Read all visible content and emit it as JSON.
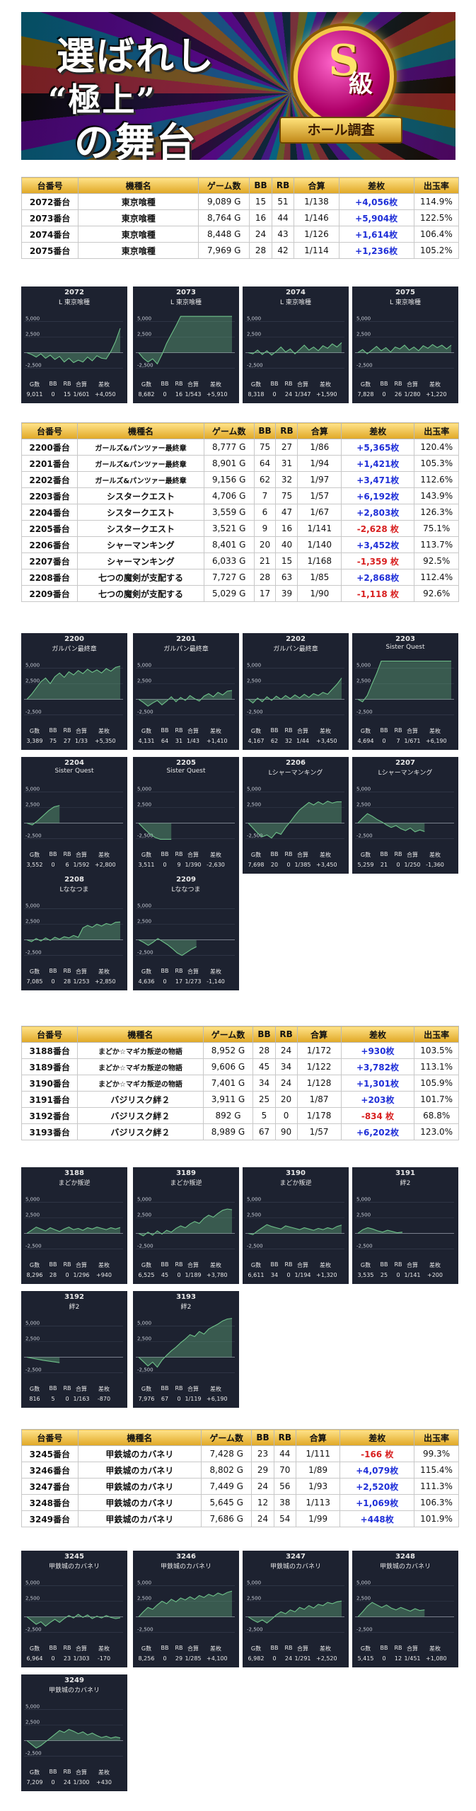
{
  "banner": {
    "line1": "選ばれし",
    "line2": "“極上”",
    "line3": "の舞台",
    "badge_letter": "S",
    "badge_suffix": "級",
    "badge_ribbon": "ホール調査"
  },
  "columns": [
    "台番号",
    "機種名",
    "ゲーム数",
    "BB",
    "RB",
    "合算",
    "差枚",
    "出玉率"
  ],
  "colors": {
    "plus": "#1f2fd8",
    "minus": "#d81f1f",
    "header": "#f0c040",
    "graph_bg": "#1d2230",
    "graph_line": "#6fc28a"
  },
  "graph_labels": {
    "y_top": "5,000",
    "y_mid": "2,500",
    "y_bot": "-2,500",
    "stat_labels": [
      "G数",
      "BB",
      "RB",
      "合算",
      "差枚"
    ]
  },
  "groups": [
    {
      "rows": [
        [
          "2072番台",
          "東京喰種",
          "9,089 G",
          "15",
          "51",
          "1/138",
          "+4,056枚",
          "114.9%"
        ],
        [
          "2073番台",
          "東京喰種",
          "8,764 G",
          "16",
          "44",
          "1/146",
          "+5,904枚",
          "122.5%"
        ],
        [
          "2074番台",
          "東京喰種",
          "8,448 G",
          "24",
          "43",
          "1/126",
          "+1,614枚",
          "106.4%"
        ],
        [
          "2075番台",
          "東京喰種",
          "7,969 G",
          "28",
          "42",
          "1/114",
          "+1,236枚",
          "105.2%"
        ]
      ],
      "graphs": [
        {
          "no": "2072",
          "machine": "L 東京喰種",
          "stats": [
            "9,011",
            "0",
            "15",
            "1/601",
            "+4,050"
          ],
          "series": [
            0,
            -300,
            -700,
            -200,
            -900,
            -400,
            -1100,
            -600,
            -1500,
            -900,
            -1600,
            -1200,
            -1500,
            -700,
            -1300,
            -500,
            -900,
            -1000,
            200,
            1800,
            3900
          ]
        },
        {
          "no": "2073",
          "machine": "L 東京喰種",
          "stats": [
            "8,682",
            "0",
            "16",
            "1/543",
            "+5,910"
          ],
          "series": [
            0,
            -900,
            -1500,
            -1000,
            -1800,
            -300,
            1500,
            2900,
            4300,
            5800,
            5800,
            5800,
            5800,
            5800,
            5800,
            5800,
            5800,
            5800,
            5800,
            5800,
            5800
          ]
        },
        {
          "no": "2074",
          "machine": "L 東京喰種",
          "stats": [
            "8,318",
            "0",
            "24",
            "1/347",
            "+1,590"
          ],
          "series": [
            0,
            -200,
            400,
            -300,
            300,
            -400,
            200,
            900,
            100,
            600,
            -200,
            500,
            1200,
            400,
            900,
            300,
            1100,
            700,
            1400,
            900,
            1600
          ]
        },
        {
          "no": "2075",
          "machine": "L 東京喰種",
          "stats": [
            "7,828",
            "0",
            "26",
            "1/280",
            "+1,220"
          ],
          "series": [
            0,
            500,
            -200,
            400,
            1000,
            300,
            800,
            100,
            900,
            600,
            1200,
            400,
            900,
            300,
            1100,
            700,
            1300,
            800,
            1200,
            600,
            1200
          ]
        }
      ]
    },
    {
      "rows": [
        [
          "2200番台",
          "ガールズ&パンツァー最終章",
          "8,777 G",
          "75",
          "27",
          "1/86",
          "+5,365枚",
          "120.4%"
        ],
        [
          "2201番台",
          "ガールズ&パンツァー最終章",
          "8,901 G",
          "64",
          "31",
          "1/94",
          "+1,421枚",
          "105.3%"
        ],
        [
          "2202番台",
          "ガールズ&パンツァー最終章",
          "9,156 G",
          "62",
          "32",
          "1/97",
          "+3,471枚",
          "112.6%"
        ],
        [
          "2203番台",
          "シスタークエスト",
          "4,706 G",
          "7",
          "75",
          "1/57",
          "+6,192枚",
          "143.9%"
        ],
        [
          "2204番台",
          "シスタークエスト",
          "3,559 G",
          "6",
          "47",
          "1/67",
          "+2,803枚",
          "126.3%"
        ],
        [
          "2205番台",
          "シスタークエスト",
          "3,521 G",
          "9",
          "16",
          "1/141",
          "-2,628 枚",
          "75.1%"
        ],
        [
          "2206番台",
          "シャーマンキング",
          "8,401 G",
          "20",
          "40",
          "1/140",
          "+3,452枚",
          "113.7%"
        ],
        [
          "2207番台",
          "シャーマンキング",
          "6,033 G",
          "21",
          "15",
          "1/168",
          "-1,359 枚",
          "92.5%"
        ],
        [
          "2208番台",
          "七つの魔剣が支配する",
          "7,727 G",
          "28",
          "63",
          "1/85",
          "+2,868枚",
          "112.4%"
        ],
        [
          "2209番台",
          "七つの魔剣が支配する",
          "5,029 G",
          "17",
          "39",
          "1/90",
          "-1,118 枚",
          "92.6%"
        ]
      ],
      "graphs": [
        {
          "no": "2200",
          "machine": "ガルパン最終章",
          "stats": [
            "3,389",
            "75",
            "27",
            "1/33",
            "+5,350"
          ],
          "series": [
            0,
            800,
            1800,
            2800,
            3400,
            2500,
            3600,
            4200,
            3500,
            4400,
            3900,
            4600,
            4100,
            4800,
            4300,
            4700,
            4200,
            4900,
            4500,
            5100,
            5300
          ]
        },
        {
          "no": "2201",
          "machine": "ガルパン最終章",
          "stats": [
            "4,131",
            "64",
            "31",
            "1/43",
            "+1,410"
          ],
          "series": [
            0,
            -500,
            -1100,
            -600,
            -200,
            -900,
            -300,
            400,
            -400,
            300,
            -200,
            600,
            100,
            -300,
            500,
            900,
            400,
            1100,
            700,
            1300,
            1400
          ]
        },
        {
          "no": "2202",
          "machine": "ガルパン最終章",
          "stats": [
            "4,167",
            "62",
            "32",
            "1/44",
            "+3,450"
          ],
          "series": [
            0,
            -600,
            200,
            -400,
            400,
            -200,
            500,
            0,
            600,
            100,
            700,
            200,
            800,
            300,
            900,
            600,
            1100,
            800,
            1600,
            2400,
            3400
          ]
        },
        {
          "no": "2203",
          "machine": "Sister Quest",
          "stats": [
            "4,694",
            "0",
            "7",
            "1/671",
            "+6,190"
          ],
          "series": [
            0,
            -400,
            600,
            2400,
            4100,
            6100,
            6100,
            6100,
            6100,
            6100,
            6100,
            6100,
            6100,
            6100,
            6100,
            6100,
            6100,
            6100,
            6100,
            6100,
            6100
          ]
        },
        {
          "no": "2204",
          "machine": "Sister Quest",
          "stats": [
            "3,552",
            "0",
            "6",
            "1/592",
            "+2,800"
          ],
          "series": [
            0,
            -300,
            400,
            1200,
            2000,
            2600,
            2800
          ]
        },
        {
          "no": "2205",
          "machine": "Sister Quest",
          "stats": [
            "3,511",
            "0",
            "9",
            "1/390",
            "-2,630"
          ],
          "series": [
            0,
            -900,
            -1700,
            -2300,
            -2600,
            -2600,
            -2600
          ]
        },
        {
          "no": "2206",
          "machine": "Lシャーマンキング",
          "stats": [
            "7,698",
            "20",
            "0",
            "1/385",
            "+3,450"
          ],
          "series": [
            0,
            -800,
            -1600,
            -2200,
            -1900,
            -2400,
            -1500,
            -1800,
            -700,
            200,
            1200,
            2100,
            2700,
            3300,
            2900,
            3400,
            3000,
            3500,
            3200,
            3400,
            3400
          ]
        },
        {
          "no": "2207",
          "machine": "Lシャーマンキング",
          "stats": [
            "5,259",
            "21",
            "0",
            "1/250",
            "-1,360"
          ],
          "series": [
            0,
            800,
            1500,
            1100,
            600,
            200,
            -300,
            -700,
            -400,
            -900,
            -1200,
            -800,
            -1400,
            -1100,
            -1360
          ]
        },
        {
          "no": "2208",
          "machine": "Lななつま",
          "stats": [
            "7,085",
            "0",
            "28",
            "1/253",
            "+2,850"
          ],
          "series": [
            0,
            -300,
            200,
            -200,
            300,
            -100,
            400,
            100,
            500,
            300,
            700,
            400,
            1900,
            2300,
            2000,
            2500,
            2200,
            2600,
            2400,
            2800,
            2850
          ]
        },
        {
          "no": "2209",
          "machine": "Lななつま",
          "stats": [
            "4,636",
            "0",
            "17",
            "1/273",
            "-1,140"
          ],
          "series": [
            0,
            -400,
            -900,
            -400,
            200,
            -300,
            -800,
            -1400,
            -2100,
            -2500,
            -2000,
            -1500,
            -1100
          ]
        }
      ]
    },
    {
      "rows": [
        [
          "3188番台",
          "まどか☆マギカ叛逆の物語",
          "8,952 G",
          "28",
          "24",
          "1/172",
          "+930枚",
          "103.5%"
        ],
        [
          "3189番台",
          "まどか☆マギカ叛逆の物語",
          "9,606 G",
          "45",
          "34",
          "1/122",
          "+3,782枚",
          "113.1%"
        ],
        [
          "3190番台",
          "まどか☆マギカ叛逆の物語",
          "7,401 G",
          "34",
          "24",
          "1/128",
          "+1,301枚",
          "105.9%"
        ],
        [
          "3191番台",
          "バジリスク絆２",
          "3,911 G",
          "25",
          "20",
          "1/87",
          "+203枚",
          "101.7%"
        ],
        [
          "3192番台",
          "バジリスク絆２",
          "892 G",
          "5",
          "0",
          "1/178",
          "-834 枚",
          "68.8%"
        ],
        [
          "3193番台",
          "バジリスク絆２",
          "8,989 G",
          "67",
          "90",
          "1/57",
          "+6,202枚",
          "123.0%"
        ]
      ],
      "graphs": [
        {
          "no": "3188",
          "machine": "まどか叛逆",
          "stats": [
            "8,296",
            "28",
            "0",
            "1/296",
            "+940"
          ],
          "series": [
            0,
            500,
            1000,
            700,
            400,
            900,
            600,
            300,
            700,
            1000,
            600,
            800,
            500,
            900,
            700,
            1000,
            800,
            600,
            900,
            700,
            940
          ]
        },
        {
          "no": "3189",
          "machine": "まどか叛逆",
          "stats": [
            "6,525",
            "45",
            "0",
            "1/189",
            "+3,780"
          ],
          "series": [
            0,
            -400,
            200,
            -300,
            400,
            -100,
            500,
            200,
            800,
            1200,
            900,
            1500,
            1900,
            1600,
            2400,
            2900,
            2600,
            3200,
            3700,
            3900,
            3780
          ]
        },
        {
          "no": "3190",
          "machine": "まどか叛逆",
          "stats": [
            "6,611",
            "34",
            "0",
            "1/194",
            "+1,320"
          ],
          "series": [
            0,
            -200,
            400,
            900,
            1400,
            1100,
            900,
            700,
            1200,
            1000,
            800,
            600,
            900,
            700,
            500,
            800,
            600,
            900,
            700,
            1100,
            1320
          ]
        },
        {
          "no": "3191",
          "machine": "絆2",
          "stats": [
            "3,535",
            "25",
            "0",
            "1/141",
            "+200"
          ],
          "series": [
            0,
            600,
            900,
            700,
            400,
            200,
            500,
            300,
            100,
            200
          ]
        },
        {
          "no": "3192",
          "machine": "絆2",
          "stats": [
            "816",
            "5",
            "0",
            "1/163",
            "-870"
          ],
          "series": [
            0,
            -500,
            -870
          ]
        },
        {
          "no": "3193",
          "machine": "絆2",
          "stats": [
            "7,976",
            "67",
            "0",
            "1/119",
            "+6,190"
          ],
          "series": [
            0,
            -700,
            -1400,
            -800,
            -1600,
            -500,
            300,
            1000,
            1600,
            2300,
            2900,
            3600,
            3300,
            4100,
            3700,
            4500,
            4900,
            5300,
            5800,
            6100,
            6190
          ]
        }
      ]
    },
    {
      "rows": [
        [
          "3245番台",
          "甲鉄城のカバネリ",
          "7,428 G",
          "23",
          "44",
          "1/111",
          "-166 枚",
          "99.3%"
        ],
        [
          "3246番台",
          "甲鉄城のカバネリ",
          "8,802 G",
          "29",
          "70",
          "1/89",
          "+4,079枚",
          "115.4%"
        ],
        [
          "3247番台",
          "甲鉄城のカバネリ",
          "7,449 G",
          "24",
          "56",
          "1/93",
          "+2,520枚",
          "111.3%"
        ],
        [
          "3248番台",
          "甲鉄城のカバネリ",
          "5,645 G",
          "12",
          "38",
          "1/113",
          "+1,069枚",
          "106.3%"
        ],
        [
          "3249番台",
          "甲鉄城のカバネリ",
          "7,686 G",
          "24",
          "54",
          "1/99",
          "+448枚",
          "101.9%"
        ]
      ],
      "graphs": [
        {
          "no": "3245",
          "machine": "甲鉄城のカバネリ",
          "stats": [
            "6,964",
            "0",
            "23",
            "1/303",
            "-170"
          ],
          "series": [
            0,
            -600,
            -1200,
            -800,
            -1500,
            -900,
            -400,
            -900,
            -300,
            200,
            -200,
            400,
            -100,
            300,
            -300,
            100,
            -200,
            200,
            -100,
            -300,
            -170
          ]
        },
        {
          "no": "3246",
          "machine": "甲鉄城のカバネリ",
          "stats": [
            "8,256",
            "0",
            "29",
            "1/285",
            "+4,100"
          ],
          "series": [
            0,
            800,
            1500,
            1200,
            1900,
            2500,
            2100,
            2800,
            2400,
            3000,
            2700,
            3200,
            2800,
            3400,
            3100,
            3600,
            3300,
            3800,
            3500,
            3900,
            4100
          ]
        },
        {
          "no": "3247",
          "machine": "甲鉄城のカバネリ",
          "stats": [
            "6,982",
            "0",
            "24",
            "1/291",
            "+2,520"
          ],
          "series": [
            0,
            -500,
            -900,
            -500,
            -1000,
            -400,
            300,
            800,
            500,
            1100,
            800,
            1500,
            1200,
            1800,
            1400,
            2000,
            1800,
            2300,
            2100,
            2400,
            2520
          ]
        },
        {
          "no": "3248",
          "machine": "甲鉄城のカバネリ",
          "stats": [
            "5,415",
            "0",
            "12",
            "1/451",
            "+1,080"
          ],
          "series": [
            0,
            800,
            1700,
            2300,
            1900,
            1500,
            1900,
            1400,
            1100,
            1500,
            1200,
            900,
            1300,
            1000,
            1100
          ]
        },
        {
          "no": "3249",
          "machine": "甲鉄城のカバネリ",
          "stats": [
            "7,209",
            "0",
            "24",
            "1/300",
            "+430"
          ],
          "series": [
            0,
            -600,
            -1200,
            -800,
            -200,
            400,
            1000,
            1600,
            1300,
            1800,
            1500,
            1100,
            1400,
            900,
            1200,
            800,
            500,
            700,
            400,
            600,
            430
          ]
        }
      ]
    }
  ]
}
